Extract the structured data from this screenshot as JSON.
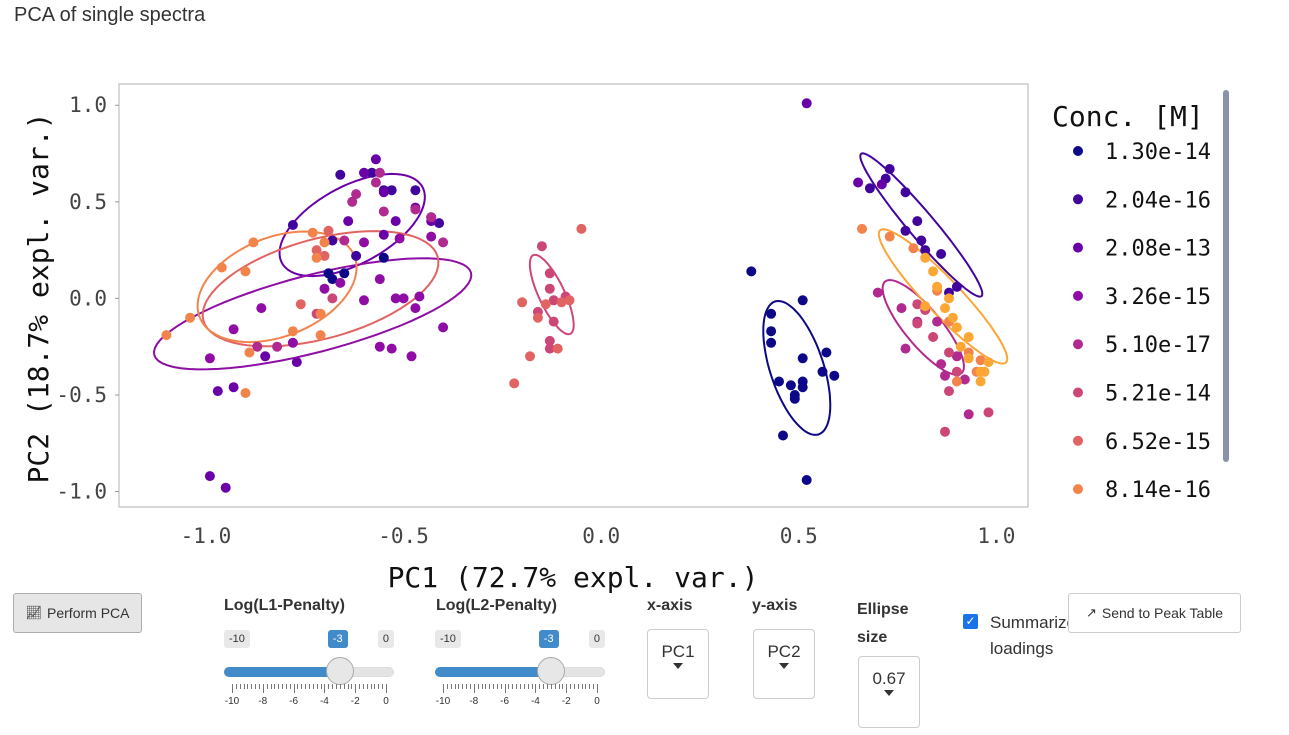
{
  "page": {
    "title": "PCA of single spectra"
  },
  "chart_data": {
    "type": "scatter",
    "xlabel": "PC1 (72.7% expl. var.)",
    "ylabel": "PC2 (18.7% expl. var.)",
    "xlim": [
      -1.22,
      1.08
    ],
    "ylim": [
      -1.08,
      1.11
    ],
    "xticks": [
      -1.0,
      -0.5,
      0.0,
      0.5,
      1.0
    ],
    "xtick_labels": [
      "-1.0",
      "-0.5",
      "0.0",
      "0.5",
      "1.0"
    ],
    "yticks": [
      -1.0,
      -0.5,
      0.0,
      0.5,
      1.0
    ],
    "ytick_labels": [
      "-1.0",
      "-0.5",
      "0.0",
      "0.5",
      "1.0"
    ],
    "grid": false,
    "legend_title": "Conc. [M]",
    "legend_position": "right",
    "series": [
      {
        "name": "1.30e-14",
        "color": "#0d0887",
        "points": [
          [
            0.38,
            0.14
          ],
          [
            0.51,
            -0.01
          ],
          [
            0.43,
            -0.08
          ],
          [
            0.43,
            -0.17
          ],
          [
            0.43,
            -0.23
          ],
          [
            0.51,
            -0.31
          ],
          [
            0.57,
            -0.28
          ],
          [
            0.45,
            -0.43
          ],
          [
            0.48,
            -0.45
          ],
          [
            0.51,
            -0.43
          ],
          [
            0.51,
            -0.46
          ],
          [
            0.49,
            -0.5
          ],
          [
            0.49,
            -0.52
          ],
          [
            0.56,
            -0.38
          ],
          [
            0.59,
            -0.4
          ],
          [
            0.46,
            -0.71
          ],
          [
            0.52,
            -0.94
          ],
          [
            -0.68,
            0.1
          ],
          [
            -0.69,
            0.13
          ],
          [
            -0.65,
            0.13
          ],
          [
            -0.55,
            0.21
          ]
        ],
        "ellipse": {
          "cx": 0.495,
          "cy": -0.36,
          "rx": 0.35,
          "ry": 0.07,
          "angle_deg": -82
        }
      },
      {
        "name": "2.04e-16",
        "color": "#41049d",
        "points": [
          [
            0.68,
            0.57
          ],
          [
            0.72,
            0.62
          ],
          [
            0.73,
            0.67
          ],
          [
            0.77,
            0.55
          ],
          [
            0.8,
            0.4
          ],
          [
            0.77,
            0.35
          ],
          [
            0.81,
            0.3
          ],
          [
            0.82,
            0.25
          ],
          [
            0.86,
            0.23
          ],
          [
            0.9,
            0.06
          ],
          [
            0.88,
            0.03
          ],
          [
            -0.66,
            0.64
          ],
          [
            -0.58,
            0.65
          ],
          [
            -0.55,
            0.56
          ],
          [
            -0.53,
            0.56
          ],
          [
            -0.47,
            0.56
          ],
          [
            -0.43,
            0.42
          ],
          [
            -0.68,
            0.3
          ],
          [
            -0.62,
            0.22
          ],
          [
            -0.78,
            0.38
          ],
          [
            -0.41,
            0.39
          ]
        ],
        "ellipse": {
          "cx": 0.81,
          "cy": 0.38,
          "rx": 0.4,
          "ry": 0.04,
          "angle_deg": -68
        }
      },
      {
        "name": "2.08e-13",
        "color": "#6a00a8",
        "points": [
          [
            0.52,
            1.01
          ],
          [
            0.65,
            0.6
          ],
          [
            0.71,
            0.59
          ],
          [
            -0.57,
            0.72
          ],
          [
            -0.6,
            0.65
          ],
          [
            -0.55,
            0.55
          ],
          [
            -0.47,
            0.47
          ],
          [
            -0.52,
            0.4
          ],
          [
            -0.64,
            0.4
          ],
          [
            -0.55,
            0.33
          ],
          [
            -0.43,
            0.4
          ],
          [
            -0.97,
            -0.48
          ],
          [
            -0.93,
            -0.46
          ],
          [
            -0.99,
            -0.92
          ],
          [
            -0.95,
            -0.98
          ],
          [
            -0.77,
            -0.33
          ],
          [
            -0.85,
            -0.3
          ]
        ],
        "ellipse": {
          "cx": -0.63,
          "cy": 0.38,
          "rx": 0.29,
          "ry": 0.14,
          "angle_deg": 62
        }
      },
      {
        "name": "3.26e-15",
        "color": "#8f0da4",
        "points": [
          [
            -0.99,
            -0.31
          ],
          [
            -0.93,
            -0.16
          ],
          [
            -0.78,
            -0.23
          ],
          [
            -0.52,
            0.0
          ],
          [
            -0.5,
            0.0
          ],
          [
            -0.47,
            -0.05
          ],
          [
            -0.4,
            -0.15
          ],
          [
            -0.46,
            0.01
          ],
          [
            -0.48,
            -0.3
          ],
          [
            -0.56,
            -0.25
          ],
          [
            -0.53,
            -0.26
          ],
          [
            -0.43,
            0.32
          ],
          [
            -0.6,
            0.29
          ],
          [
            -0.51,
            0.31
          ],
          [
            -0.56,
            0.1
          ],
          [
            -0.66,
            0.08
          ],
          [
            -0.7,
            0.05
          ],
          [
            -0.86,
            -0.05
          ],
          [
            -0.6,
            -0.01
          ]
        ],
        "ellipse": {
          "cx": -0.73,
          "cy": -0.08,
          "rx": 0.46,
          "ry": 0.18,
          "angle_deg": 32
        }
      },
      {
        "name": "5.10e-17",
        "color": "#b12a90",
        "points": [
          [
            -0.57,
            0.6
          ],
          [
            -0.56,
            0.65
          ],
          [
            -0.62,
            0.54
          ],
          [
            -0.63,
            0.5
          ],
          [
            -0.55,
            0.45
          ],
          [
            -0.47,
            0.46
          ],
          [
            -0.43,
            0.42
          ],
          [
            -0.4,
            0.29
          ],
          [
            -0.65,
            0.3
          ],
          [
            -0.82,
            -0.25
          ],
          [
            -0.87,
            -0.25
          ],
          [
            0.7,
            0.03
          ],
          [
            0.76,
            -0.05
          ],
          [
            0.8,
            -0.12
          ],
          [
            0.85,
            -0.12
          ],
          [
            0.77,
            -0.26
          ],
          [
            0.86,
            -0.34
          ],
          [
            0.9,
            -0.3
          ],
          [
            0.92,
            -0.42
          ],
          [
            0.87,
            -0.4
          ],
          [
            0.93,
            -0.6
          ]
        ],
        "ellipse": {
          "cx": 0.815,
          "cy": -0.15,
          "rx": 0.26,
          "ry": 0.055,
          "angle_deg": -70
        }
      },
      {
        "name": "5.21e-14",
        "color": "#cc4778",
        "points": [
          [
            -0.15,
            0.27
          ],
          [
            -0.13,
            0.13
          ],
          [
            -0.13,
            0.05
          ],
          [
            -0.09,
            0.01
          ],
          [
            -0.12,
            -0.01
          ],
          [
            -0.16,
            -0.07
          ],
          [
            -0.12,
            -0.12
          ],
          [
            -0.13,
            -0.22
          ],
          [
            -0.13,
            -0.26
          ],
          [
            0.8,
            -0.03
          ],
          [
            0.82,
            -0.06
          ],
          [
            0.84,
            -0.2
          ],
          [
            0.8,
            -0.13
          ],
          [
            0.88,
            -0.28
          ],
          [
            0.9,
            -0.38
          ],
          [
            0.88,
            -0.48
          ],
          [
            0.87,
            -0.69
          ],
          [
            0.98,
            -0.59
          ],
          [
            -0.68,
            0.0
          ],
          [
            -0.72,
            -0.08
          ]
        ],
        "ellipse": {
          "cx": -0.125,
          "cy": 0.02,
          "rx": 0.21,
          "ry": 0.035,
          "angle_deg": -78
        }
      },
      {
        "name": "6.52e-15",
        "color": "#e16462",
        "points": [
          [
            -0.05,
            0.36
          ],
          [
            -0.2,
            -0.02
          ],
          [
            -0.08,
            -0.01
          ],
          [
            -0.1,
            -0.02
          ],
          [
            -0.14,
            -0.03
          ],
          [
            -0.16,
            -0.1
          ],
          [
            -0.18,
            -0.3
          ],
          [
            -0.22,
            -0.44
          ],
          [
            -0.11,
            -0.26
          ],
          [
            -0.76,
            -0.03
          ],
          [
            -0.7,
            0.22
          ],
          [
            -0.72,
            0.25
          ],
          [
            -0.69,
            0.35
          ]
        ],
        "ellipse": {
          "cx": -0.71,
          "cy": 0.05,
          "rx": 0.36,
          "ry": 0.22,
          "angle_deg": 45
        }
      },
      {
        "name": "8.14e-16",
        "color": "#f2844b",
        "points": [
          [
            -1.1,
            -0.19
          ],
          [
            -1.04,
            -0.1
          ],
          [
            -0.96,
            0.16
          ],
          [
            -0.9,
            0.14
          ],
          [
            -0.88,
            0.29
          ],
          [
            -0.89,
            -0.28
          ],
          [
            -0.9,
            -0.49
          ],
          [
            -0.78,
            -0.17
          ],
          [
            -0.71,
            -0.08
          ],
          [
            -0.71,
            -0.19
          ],
          [
            -0.72,
            0.21
          ],
          [
            -0.73,
            0.34
          ],
          [
            -0.7,
            0.29
          ],
          [
            0.66,
            0.36
          ],
          [
            0.73,
            0.32
          ],
          [
            0.79,
            0.26
          ],
          [
            0.85,
            0.04
          ],
          [
            0.88,
            -0.12
          ],
          [
            0.93,
            -0.28
          ],
          [
            0.96,
            -0.32
          ],
          [
            0.95,
            -0.38
          ],
          [
            0.9,
            -0.43
          ]
        ],
        "ellipse": {
          "cx": -0.82,
          "cy": 0.06,
          "rx": 0.3,
          "ry": 0.18,
          "angle_deg": 68
        }
      },
      {
        "name": "",
        "color": "#fca636",
        "in_legend": false,
        "points": [
          [
            0.82,
            0.21
          ],
          [
            0.84,
            0.14
          ],
          [
            0.85,
            0.06
          ],
          [
            0.87,
            -0.05
          ],
          [
            0.88,
            0.0
          ],
          [
            0.82,
            -0.04
          ],
          [
            0.89,
            -0.1
          ],
          [
            0.9,
            -0.15
          ],
          [
            0.93,
            -0.2
          ],
          [
            0.91,
            -0.25
          ],
          [
            0.93,
            -0.31
          ],
          [
            0.98,
            -0.33
          ],
          [
            0.96,
            -0.38
          ],
          [
            0.97,
            -0.38
          ],
          [
            0.96,
            -0.43
          ]
        ],
        "ellipse": {
          "cx": 0.865,
          "cy": 0.01,
          "rx": 0.38,
          "ry": 0.055,
          "angle_deg": -66
        }
      }
    ]
  },
  "controls": {
    "perform_pca_label": "Perform PCA",
    "l1": {
      "label": "Log(L1-Penalty)",
      "min": -10,
      "max": 0,
      "value": -3,
      "min_label": "-10",
      "max_label": "0",
      "value_label": "-3",
      "tick_labels": [
        "-10",
        "-8",
        "-6",
        "-4",
        "-2",
        "0"
      ]
    },
    "l2": {
      "label": "Log(L2-Penalty)",
      "min": -10,
      "max": 0,
      "value": -3,
      "min_label": "-10",
      "max_label": "0",
      "value_label": "-3",
      "tick_labels": [
        "-10",
        "-8",
        "-6",
        "-4",
        "-2",
        "0"
      ]
    },
    "xaxis": {
      "label": "x-axis",
      "value": "PC1"
    },
    "yaxis": {
      "label": "y-axis",
      "value": "PC2"
    },
    "ellipse": {
      "label": "Ellipse size",
      "value": "0.67"
    },
    "summarize": {
      "label": "Summarize loadings",
      "checked": true
    },
    "send_label": "Send to Peak Table"
  }
}
